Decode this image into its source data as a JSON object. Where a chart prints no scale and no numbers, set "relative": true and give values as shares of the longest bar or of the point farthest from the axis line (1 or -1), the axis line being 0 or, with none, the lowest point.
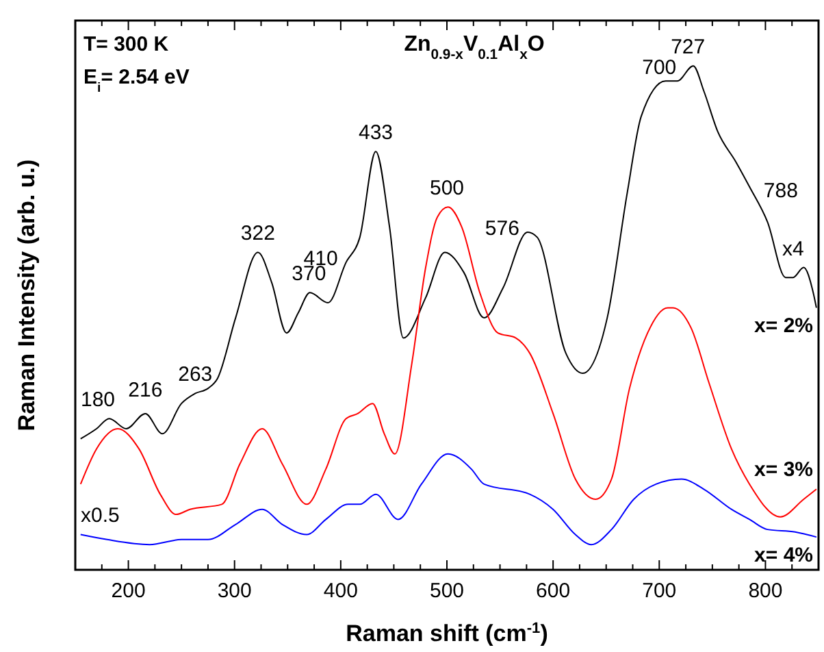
{
  "chart_data": {
    "type": "line",
    "relative": true,
    "title": "Zn$_{0.9-x}$V$_{0.1}$Al$_{x}$O",
    "xlabel": "Raman shift (cm$^{-1}$)",
    "ylabel": "Raman Intensity (arb. u.)",
    "xlim": [
      150,
      850
    ],
    "xticks": [
      {
        "value": 175,
        "label": null
      },
      200,
      {
        "value": 225,
        "label": null
      },
      {
        "value": 250,
        "label": null
      },
      {
        "value": 275,
        "label": null
      },
      300,
      {
        "value": 325,
        "label": null
      },
      {
        "value": 350,
        "label": null
      },
      {
        "value": 375,
        "label": null
      },
      400,
      {
        "value": 425,
        "label": null
      },
      {
        "value": 450,
        "label": null
      },
      {
        "value": 475,
        "label": null
      },
      500,
      {
        "value": 525,
        "label": null
      },
      {
        "value": 550,
        "label": null
      },
      {
        "value": 575,
        "label": null
      },
      600,
      {
        "value": 625,
        "label": null
      },
      {
        "value": 650,
        "label": null
      },
      {
        "value": 675,
        "label": null
      },
      700,
      {
        "value": 725,
        "label": null
      },
      {
        "value": 750,
        "label": null
      },
      {
        "value": 775,
        "label": null
      },
      800,
      {
        "value": 825,
        "label": null
      }
    ],
    "series": [
      {
        "name": "x= 2%",
        "color": "#000000",
        "x": [
          155,
          170,
          182,
          198,
          216,
          232,
          250,
          263,
          275,
          284,
          301,
          322,
          335,
          349,
          360,
          371,
          388,
          405,
          418,
          433,
          446,
          459,
          480,
          498,
          516,
          535,
          553,
          576,
          585,
          612,
          628,
          651,
          670,
          683,
          706,
          717,
          732,
          742,
          755,
          772,
          785,
          802,
          819,
          826,
          836,
          845,
          848
        ],
        "values": [
          0.26,
          0.28,
          0.3,
          0.28,
          0.31,
          0.27,
          0.33,
          0.35,
          0.36,
          0.38,
          0.5,
          0.63,
          0.57,
          0.47,
          0.51,
          0.55,
          0.53,
          0.61,
          0.66,
          0.83,
          0.68,
          0.46,
          0.54,
          0.63,
          0.59,
          0.5,
          0.56,
          0.67,
          0.66,
          0.43,
          0.39,
          0.5,
          0.75,
          0.9,
          0.97,
          0.97,
          1.0,
          0.95,
          0.87,
          0.81,
          0.76,
          0.69,
          0.58,
          0.58,
          0.6,
          0.55,
          0.52
        ]
      },
      {
        "name": "x= 3%",
        "color": "#ff0000",
        "x": [
          155,
          170,
          190,
          210,
          230,
          245,
          258,
          288,
          305,
          326,
          345,
          368,
          386,
          405,
          416,
          430,
          441,
          451,
          467,
          480,
          491,
          501,
          514,
          531,
          548,
          565,
          578,
          600,
          621,
          640,
          655,
          672,
          689,
          708,
          713,
          730,
          747,
          768,
          785,
          814,
          836,
          848
        ],
        "values": [
          0.17,
          0.24,
          0.28,
          0.24,
          0.15,
          0.11,
          0.12,
          0.13,
          0.21,
          0.28,
          0.21,
          0.13,
          0.2,
          0.3,
          0.31,
          0.33,
          0.27,
          0.23,
          0.41,
          0.6,
          0.7,
          0.72,
          0.68,
          0.55,
          0.47,
          0.46,
          0.43,
          0.31,
          0.18,
          0.14,
          0.18,
          0.36,
          0.47,
          0.52,
          0.52,
          0.48,
          0.37,
          0.24,
          0.17,
          0.105,
          0.14,
          0.16
        ]
      },
      {
        "name": "x= 4%",
        "color": "#0000ff",
        "x": [
          155,
          180,
          220,
          250,
          258,
          275,
          301,
          326,
          345,
          368,
          386,
          407,
          418,
          433,
          454,
          476,
          501,
          523,
          535,
          578,
          600,
          621,
          636,
          655,
          676,
          697,
          721,
          742,
          768,
          785,
          802,
          828,
          848
        ],
        "values": [
          0.07,
          0.06,
          0.05,
          0.06,
          0.06,
          0.06,
          0.09,
          0.12,
          0.09,
          0.07,
          0.1,
          0.13,
          0.13,
          0.15,
          0.1,
          0.17,
          0.23,
          0.2,
          0.17,
          0.15,
          0.12,
          0.07,
          0.05,
          0.08,
          0.14,
          0.17,
          0.18,
          0.16,
          0.12,
          0.1,
          0.08,
          0.075,
          0.065
        ]
      }
    ],
    "annotations": [
      "T= 300 K",
      "E$_{i}$= 2.54 eV",
      {
        "text": "180",
        "x": 180,
        "y": 0.3
      },
      {
        "text": "216",
        "x": 216,
        "y": 0.32
      },
      {
        "text": "263",
        "x": 263,
        "y": 0.35
      },
      {
        "text": "322",
        "x": 322,
        "y": 0.63
      },
      {
        "text": "370",
        "x": 370,
        "y": 0.55
      },
      {
        "text": "410",
        "x": 405,
        "y": 0.61
      },
      {
        "text": "433",
        "x": 433,
        "y": 0.83
      },
      {
        "text": "500",
        "x": 500,
        "y": 0.72
      },
      {
        "text": "576",
        "x": 576,
        "y": 0.67
      },
      {
        "text": "700",
        "x": 700,
        "y": 0.96
      },
      {
        "text": "727",
        "x": 727,
        "y": 1.0
      },
      {
        "text": "788",
        "x": 788,
        "y": 0.75
      },
      {
        "text": "x4",
        "x": 826,
        "y": 0.6
      },
      {
        "text": "x0.5",
        "x": 168,
        "y": 0.07
      }
    ]
  }
}
